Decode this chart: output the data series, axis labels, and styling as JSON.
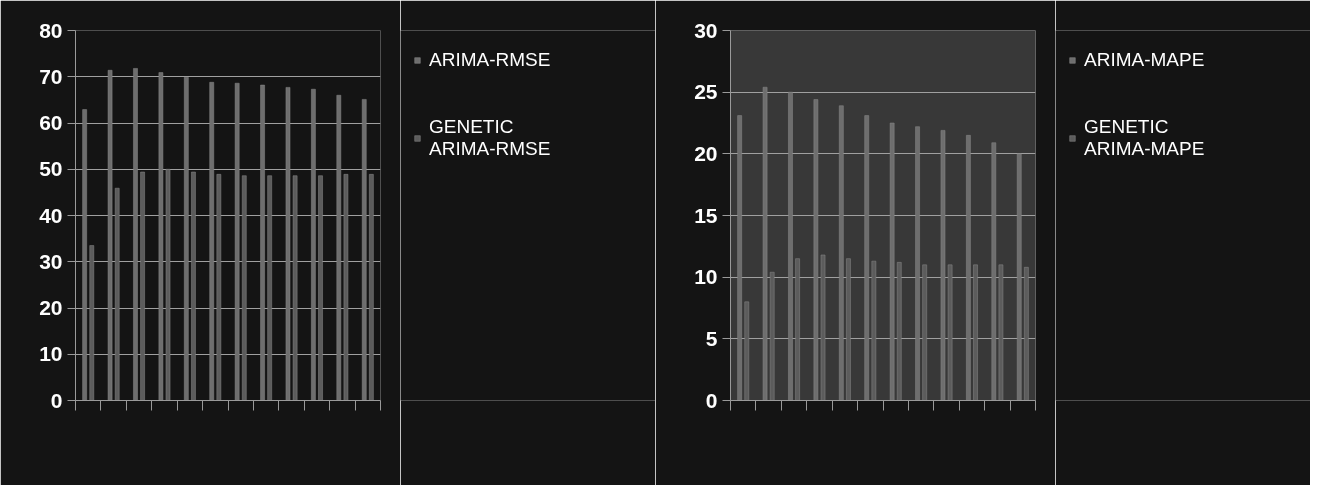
{
  "chart_data": [
    {
      "type": "bar",
      "categories": [
        null,
        null,
        null,
        null,
        null,
        null,
        null,
        null,
        null,
        null,
        null,
        null
      ],
      "series": [
        {
          "name": "ARIMA-RMSE",
          "color": "#6e6e6e",
          "values": [
            62.9,
            71.4,
            71.8,
            70.9,
            69.9,
            68.8,
            68.6,
            68.2,
            67.7,
            67.3,
            66.0,
            65.1
          ]
        },
        {
          "name": "GENETIC ARIMA-RMSE",
          "color": "#5c5c5c",
          "values": [
            33.5,
            45.9,
            49.4,
            50.0,
            49.4,
            48.9,
            48.6,
            48.6,
            48.6,
            48.6,
            48.9,
            48.9
          ]
        }
      ],
      "ylim": [
        0,
        80
      ],
      "yticks": [
        0,
        10,
        20,
        30,
        40,
        50,
        60,
        70,
        80
      ],
      "grid": "y",
      "legend": "right",
      "tick_labels": "y"
    },
    {
      "type": "bar",
      "categories": [
        null,
        null,
        null,
        null,
        null,
        null,
        null,
        null,
        null,
        null,
        null,
        null
      ],
      "series": [
        {
          "name": "ARIMA-MAPE",
          "color": "#6e6e6e",
          "values": [
            23.1,
            25.4,
            25.0,
            24.4,
            23.9,
            23.1,
            22.5,
            22.2,
            21.9,
            21.5,
            20.9,
            20.0
          ]
        },
        {
          "name": "GENETIC ARIMA-MAPE",
          "color": "#5c5c5c",
          "values": [
            8.0,
            10.4,
            11.5,
            11.8,
            11.5,
            11.3,
            11.2,
            11.0,
            11.0,
            11.0,
            11.0,
            10.8
          ]
        }
      ],
      "ylim": [
        0,
        30
      ],
      "yticks": [
        0,
        5,
        10,
        15,
        20,
        25,
        30
      ],
      "grid": "y",
      "legend": "right",
      "tick_labels": "y"
    }
  ]
}
